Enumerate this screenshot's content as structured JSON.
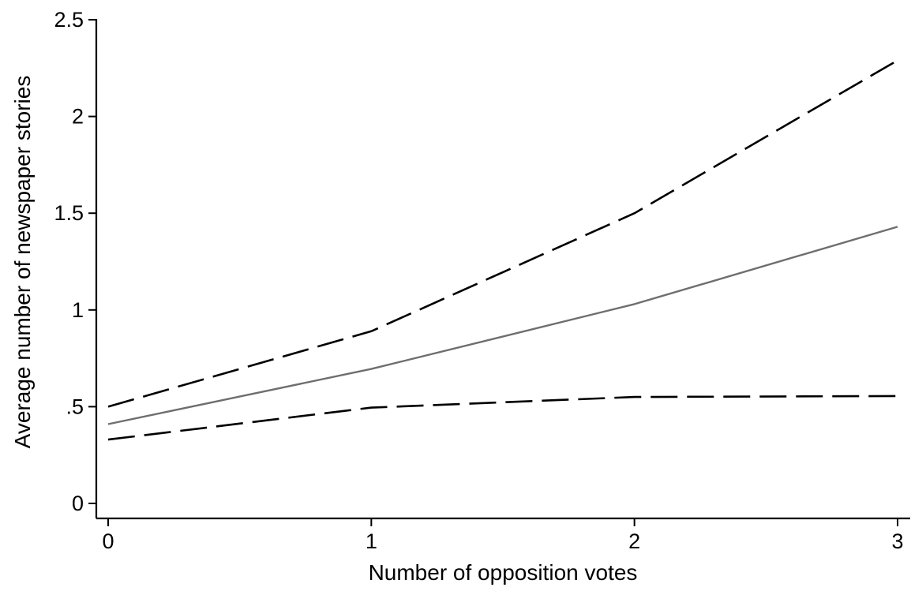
{
  "chart_data": {
    "type": "line",
    "title": "",
    "xlabel": "Number of opposition votes",
    "ylabel": "Average number of newspaper stories",
    "x": [
      0,
      1,
      2,
      3
    ],
    "xticks": [
      0,
      1,
      2,
      3
    ],
    "xtick_labels": [
      "0",
      "1",
      "2",
      "3"
    ],
    "yticks": [
      0,
      0.5,
      1,
      1.5,
      2,
      2.5
    ],
    "ytick_labels": [
      "0",
      ".5",
      "1",
      "1.5",
      "2",
      "2.5"
    ],
    "xlim": [
      0,
      3
    ],
    "ylim": [
      0,
      2.5
    ],
    "grid": false,
    "legend": "none",
    "series": [
      {
        "role": "upper-bound",
        "style": "dashed",
        "color": "#000000",
        "values": [
          0.5,
          0.89,
          1.5,
          2.29
        ]
      },
      {
        "role": "estimate",
        "style": "solid",
        "color": "#6e6e6e",
        "values": [
          0.41,
          0.695,
          1.03,
          1.43
        ]
      },
      {
        "role": "lower-bound",
        "style": "dashed",
        "color": "#000000",
        "values": [
          0.33,
          0.495,
          0.55,
          0.555
        ]
      }
    ]
  }
}
